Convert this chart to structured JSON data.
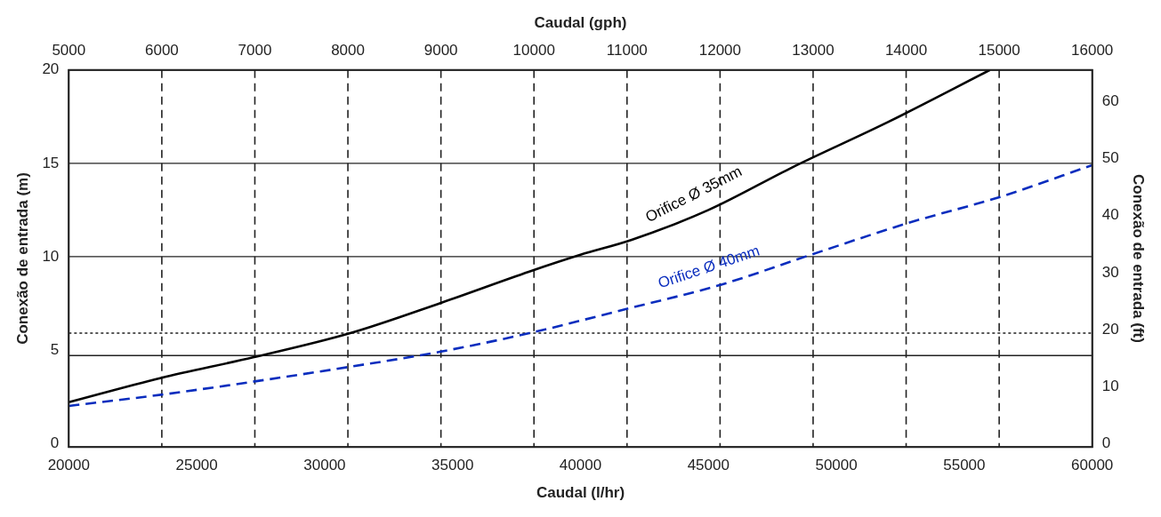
{
  "chart_data": {
    "type": "line",
    "xlabel": "Caudal (l/hr)",
    "x2label": "Caudal (gph)",
    "ylabel": "Conexão de entrada (m)",
    "y2label": "Conexão de entrada (ft)",
    "xlim": [
      20000,
      60000
    ],
    "xticks": [
      20000,
      25000,
      30000,
      35000,
      40000,
      45000,
      50000,
      55000,
      60000
    ],
    "x2lim": [
      5000,
      16000
    ],
    "x2ticks": [
      5000,
      6000,
      7000,
      8000,
      9000,
      10000,
      11000,
      12000,
      13000,
      14000,
      15000,
      16000
    ],
    "ylim": [
      -0.2,
      20
    ],
    "yticks": [
      0,
      5,
      10,
      15,
      20
    ],
    "y2lim": [
      -0.66,
      65.6
    ],
    "y2ticks": [
      0,
      10,
      20,
      30,
      40,
      50,
      60
    ],
    "grid": "x",
    "legend": false,
    "marker": "none",
    "ref_lines": [
      {
        "axis": "y",
        "value": 15,
        "color": "#222222",
        "line_style": "solid"
      },
      {
        "axis": "y",
        "value": 10,
        "color": "#222222",
        "line_style": "solid"
      },
      {
        "axis": "y",
        "value": 5.9,
        "color": "#222222",
        "line_style": "dotted"
      },
      {
        "axis": "y",
        "value": 4.7,
        "color": "#222222",
        "line_style": "solid"
      }
    ],
    "series": [
      {
        "name": "Orifice Ø 35mm",
        "color": "#000000",
        "line_style": "solid",
        "x": [
          20000,
          23600,
          27200,
          31000,
          34500,
          38000,
          40000,
          42000,
          45000,
          48300,
          52000,
          56000
        ],
        "values": [
          2.2,
          3.5,
          4.6,
          5.9,
          7.5,
          9.2,
          10.1,
          10.9,
          12.5,
          14.8,
          17.2,
          20
        ]
      },
      {
        "name": "Orifice Ø 40mm",
        "color": "#0a2dbe",
        "line_style": "dashed",
        "x": [
          20000,
          23600,
          27200,
          31000,
          34500,
          38000,
          41800,
          45500,
          49000,
          52800,
          56400,
          60000
        ],
        "values": [
          2.0,
          2.6,
          3.3,
          4.1,
          4.9,
          5.9,
          7.2,
          8.5,
          10.1,
          11.8,
          13.2,
          14.9
        ]
      }
    ]
  }
}
